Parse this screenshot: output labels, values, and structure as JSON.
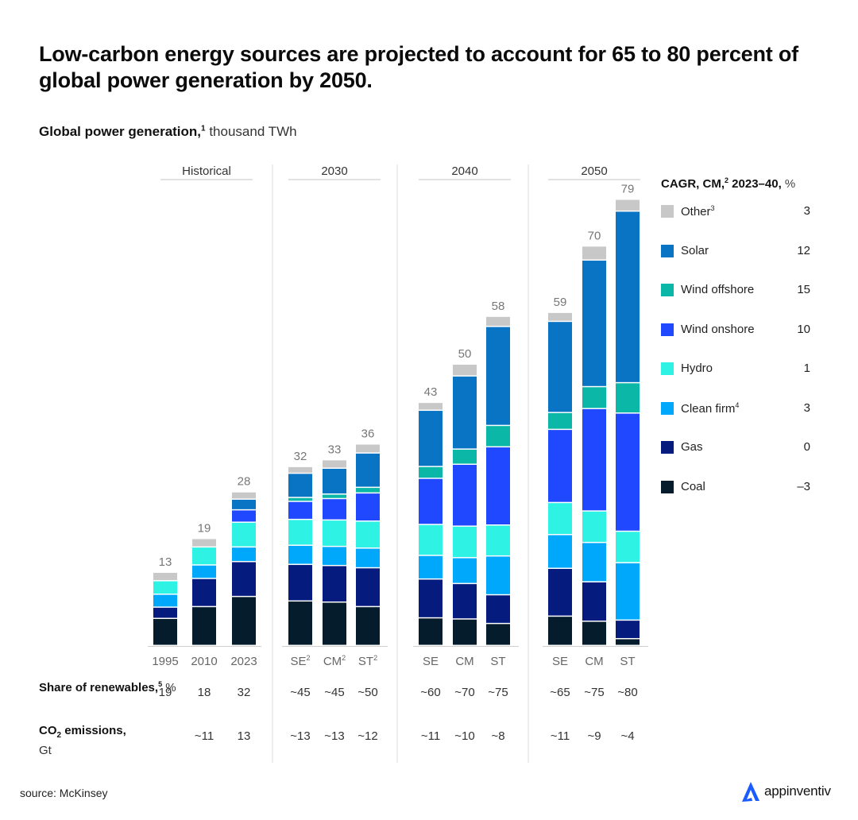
{
  "title": "Low-carbon energy sources are projected to account for 65 to 80 percent of global power generation by 2050.",
  "subtitle": {
    "bold": "Global power generation,",
    "sup": "1",
    "unit": " thousand TWh"
  },
  "legend": {
    "title_bold": "CAGR, CM,",
    "title_sup": "2",
    "title_rest": " 2023–40,",
    "title_unit": " %",
    "items": [
      {
        "name": "Other",
        "sup": "3",
        "color": "#c8c8c8",
        "cagr": "3"
      },
      {
        "name": "Solar",
        "sup": "",
        "color": "#0a74c4",
        "cagr": "12"
      },
      {
        "name": "Wind offshore",
        "sup": "",
        "color": "#0bb8a8",
        "cagr": "15"
      },
      {
        "name": "Wind onshore",
        "sup": "",
        "color": "#1f48ff",
        "cagr": "10"
      },
      {
        "name": "Hydro",
        "sup": "",
        "color": "#2ef2e4",
        "cagr": "1"
      },
      {
        "name": "Clean firm",
        "sup": "4",
        "color": "#00a8fb",
        "cagr": "3"
      },
      {
        "name": "Gas",
        "sup": "",
        "color": "#051c7e",
        "cagr": "0"
      },
      {
        "name": "Coal",
        "sup": "",
        "color": "#051c2c",
        "cagr": "–3"
      }
    ]
  },
  "rows": {
    "renewables": {
      "label_bold": "Share of renewables,",
      "sup": "5",
      "unit": " %"
    },
    "co2": {
      "label_bold_a": "CO",
      "sub": "2",
      "label_bold_b": " emissions,",
      "unit": "Gt"
    }
  },
  "chart_data": {
    "type": "bar",
    "stacked": true,
    "title": "Global power generation, thousand TWh",
    "ylabel": "thousand TWh",
    "ylim": [
      0,
      80
    ],
    "grid": false,
    "legend_position": "right",
    "stack_order": [
      "Coal",
      "Gas",
      "Clean firm",
      "Hydro",
      "Wind onshore",
      "Wind offshore",
      "Solar",
      "Other"
    ],
    "groups": [
      {
        "label": "Historical",
        "bars": [
          {
            "category": "1995",
            "sup": "",
            "total": "13",
            "renewables": "19",
            "co2": "",
            "values": [
              4.8,
              2.0,
              2.3,
              2.4,
              0,
              0,
              0,
              1.5
            ]
          },
          {
            "category": "2010",
            "sup": "",
            "total": "19",
            "renewables": "18",
            "co2": "~11",
            "values": [
              6.9,
              5.0,
              2.4,
              3.2,
              0,
              0,
              0,
              1.5
            ]
          },
          {
            "category": "2023",
            "sup": "",
            "total": "28",
            "renewables": "32",
            "co2": "13",
            "values": [
              8.7,
              6.2,
              2.6,
              4.4,
              2.2,
              0,
              1.9,
              1.3
            ]
          }
        ]
      },
      {
        "label": "2030",
        "bars": [
          {
            "category": "SE",
            "sup": "2",
            "total": "32",
            "renewables": "~45",
            "co2": "~13",
            "values": [
              7.9,
              6.5,
              3.4,
              4.6,
              3.2,
              0.7,
              4.3,
              1.2
            ]
          },
          {
            "category": "CM",
            "sup": "2",
            "total": "33",
            "renewables": "~45",
            "co2": "~13",
            "values": [
              7.7,
              6.5,
              3.4,
              4.7,
              3.8,
              0.8,
              4.6,
              1.5
            ]
          },
          {
            "category": "ST",
            "sup": "2",
            "total": "36",
            "renewables": "~50",
            "co2": "~12",
            "values": [
              6.9,
              6.9,
              3.5,
              4.8,
              5.0,
              1.0,
              6.1,
              1.6
            ]
          }
        ]
      },
      {
        "label": "2040",
        "bars": [
          {
            "category": "SE",
            "sup": "",
            "total": "43",
            "renewables": "~60",
            "co2": "~11",
            "values": [
              4.9,
              6.9,
              4.2,
              5.5,
              8.2,
              2.1,
              10.0,
              1.4
            ]
          },
          {
            "category": "CM",
            "sup": "",
            "total": "50",
            "renewables": "~70",
            "co2": "~10",
            "values": [
              4.7,
              6.3,
              4.6,
              5.6,
              11.0,
              2.7,
              13.0,
              2.1
            ]
          },
          {
            "category": "ST",
            "sup": "",
            "total": "58",
            "renewables": "~75",
            "co2": "~8",
            "values": [
              3.9,
              5.1,
              6.9,
              5.5,
              13.9,
              3.8,
              17.6,
              1.8
            ]
          }
        ]
      },
      {
        "label": "2050",
        "bars": [
          {
            "category": "SE",
            "sup": "",
            "total": "59",
            "renewables": "~65",
            "co2": "~11",
            "values": [
              5.2,
              8.5,
              6.0,
              5.7,
              13.0,
              3.0,
              16.2,
              1.6
            ]
          },
          {
            "category": "CM",
            "sup": "",
            "total": "70",
            "renewables": "~75",
            "co2": "~9",
            "values": [
              4.3,
              7.0,
              7.0,
              5.6,
              18.2,
              3.9,
              22.5,
              2.5
            ]
          },
          {
            "category": "ST",
            "sup": "",
            "total": "79",
            "renewables": "~80",
            "co2": "~4",
            "values": [
              1.2,
              3.3,
              10.2,
              5.6,
              21.0,
              5.4,
              30.5,
              2.1
            ]
          }
        ]
      }
    ]
  },
  "footer": {
    "source": "source: McKinsey",
    "brand": "appinventiv",
    "brand_icon": "appinventiv-logo-icon",
    "brand_color": "#1a5cff"
  }
}
